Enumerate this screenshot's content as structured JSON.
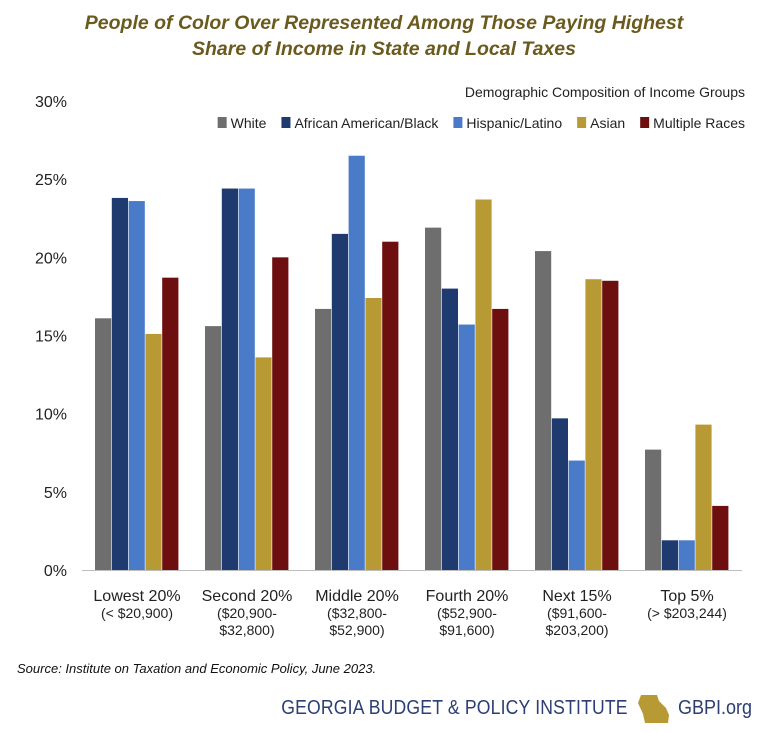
{
  "chart_data": {
    "type": "bar",
    "title_lines": [
      "People of Color Over Represented Among Those Paying Highest",
      "Share of Income in State and Local Taxes"
    ],
    "legend_title": "Demographic Composition of Income Groups",
    "legend_placement": "top-right",
    "categories": [
      [
        "Lowest 20%",
        "(< $20,900)"
      ],
      [
        "Second 20%",
        "($20,900-",
        "$32,800)"
      ],
      [
        "Middle 20%",
        "($32,800-",
        "$52,900)"
      ],
      [
        "Fourth 20%",
        "($52,900-",
        "$91,600)"
      ],
      [
        "Next 15%",
        "($91,600-",
        "$203,200)"
      ],
      [
        "Top 5%",
        "(> $203,244)"
      ]
    ],
    "series": [
      {
        "name": "White",
        "color": "#6e6e6e",
        "values": [
          16.1,
          15.6,
          16.7,
          21.9,
          20.4,
          7.7
        ]
      },
      {
        "name": "African American/Black",
        "color": "#1f3a6e",
        "values": [
          23.8,
          24.4,
          21.5,
          18.0,
          9.7,
          1.9
        ]
      },
      {
        "name": "Hispanic/Latino",
        "color": "#4a7bc8",
        "values": [
          23.6,
          24.4,
          26.5,
          15.7,
          7.0,
          1.9
        ]
      },
      {
        "name": "Asian",
        "color": "#b89a35",
        "values": [
          15.1,
          13.6,
          17.4,
          23.7,
          18.6,
          9.3
        ]
      },
      {
        "name": "Multiple Races",
        "color": "#6e0f0f",
        "values": [
          18.7,
          20.0,
          21.0,
          16.7,
          18.5,
          4.1
        ]
      }
    ],
    "y_ticks": [
      "0%",
      "5%",
      "10%",
      "15%",
      "20%",
      "25%",
      "30%"
    ],
    "ylim": [
      0,
      30
    ],
    "xlabel": "",
    "ylabel": "",
    "grid": false
  },
  "source": "Source: Institute on Taxation and Economic Policy, June 2023.",
  "footer": {
    "org": "GEORGIA BUDGET & POLICY INSTITUTE",
    "site": "GBPI.org",
    "brand_color": "#2c3e73",
    "icon_color": "#b89a35",
    "icon": "georgia-state-icon"
  }
}
